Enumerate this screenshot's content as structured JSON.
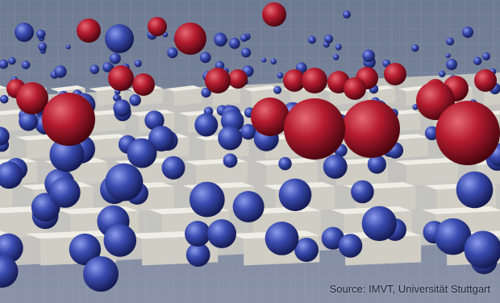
{
  "caption": "Source: IMVT, Universität Stuttgart",
  "colors": {
    "background_top": "#6e7a92",
    "background_bottom": "#8a93a8",
    "grid_line": "#a6afc2",
    "block_top": "#efeee6",
    "block_side": "#cfcdc4",
    "block_shadow": "#b4b2aa",
    "sphere_blue": "#3546a8",
    "sphere_blue_dark": "#141a52",
    "sphere_red": "#b51b2f",
    "sphere_red_dark": "#4a0610"
  }
}
